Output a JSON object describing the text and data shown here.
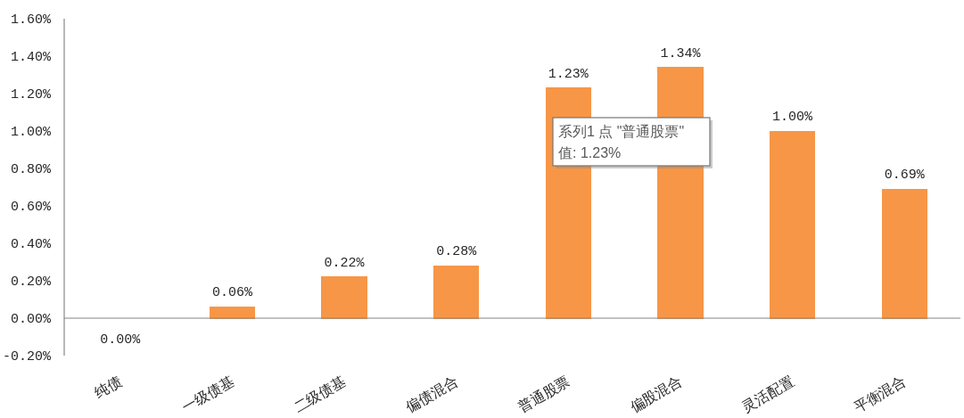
{
  "chart_data": {
    "type": "bar",
    "categories": [
      "纯债",
      "一级债基",
      "二级债基",
      "偏债混合",
      "普通股票",
      "偏股混合",
      "灵活配置",
      "平衡混合"
    ],
    "values": [
      0.0,
      0.06,
      0.22,
      0.28,
      1.23,
      1.34,
      1.0,
      0.69
    ],
    "color": "#f79646",
    "value_labels": [
      "0.00%",
      "0.06%",
      "0.22%",
      "0.28%",
      "1.23%",
      "1.34%",
      "1.00%",
      "0.69%"
    ],
    "ylim": [
      -0.2,
      1.6
    ],
    "yticks": [
      {
        "value": -0.2,
        "label": "-0.20%"
      },
      {
        "value": 0,
        "label": "0.00%"
      },
      {
        "value": 0.2,
        "label": "0.20%"
      },
      {
        "value": 0.4,
        "label": "0.40%"
      },
      {
        "value": 0.6,
        "label": "0.60%"
      },
      {
        "value": 0.8,
        "label": "0.80%"
      },
      {
        "value": 1.0,
        "label": "1.00%"
      },
      {
        "value": 1.2,
        "label": "1.20%"
      },
      {
        "value": 1.4,
        "label": "1.40%"
      },
      {
        "value": 1.6,
        "label": "1.60%"
      }
    ],
    "annotations": [
      "系列1 点 \"普通股票\"",
      "值: 1.23%"
    ]
  }
}
